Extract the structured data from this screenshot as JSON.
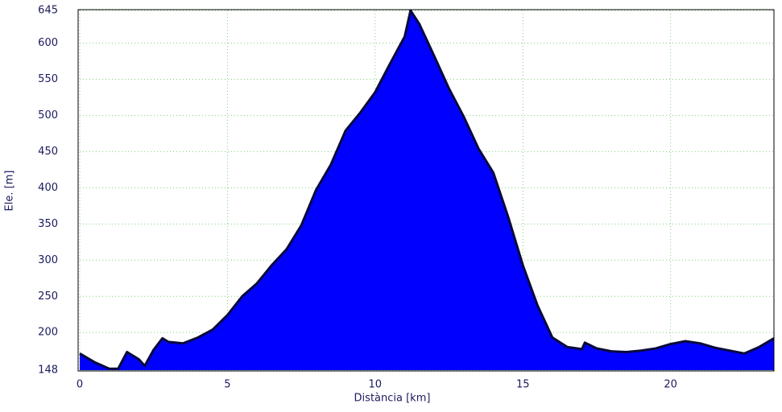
{
  "chart_data": {
    "type": "area",
    "x_label": "Distància [km]",
    "y_label": "Ele. [m]",
    "x": [
      0,
      0.5,
      1.0,
      1.3,
      1.6,
      2.0,
      2.2,
      2.5,
      2.8,
      3.0,
      3.5,
      4.0,
      4.5,
      5.0,
      5.5,
      6.0,
      6.5,
      7.0,
      7.5,
      8.0,
      8.5,
      9.0,
      9.5,
      10.0,
      10.5,
      11.0,
      11.2,
      11.5,
      12.0,
      12.5,
      13.0,
      13.5,
      14.0,
      14.5,
      15.0,
      15.5,
      16.0,
      16.5,
      17.0,
      17.1,
      17.5,
      18.0,
      18.5,
      19.0,
      19.5,
      20.0,
      20.5,
      21.0,
      21.5,
      22.0,
      22.5,
      23.0,
      23.5
    ],
    "values": [
      171,
      159,
      150,
      150,
      173,
      163,
      154,
      176,
      192,
      187,
      185,
      193,
      204,
      224,
      250,
      268,
      293,
      315,
      348,
      397,
      432,
      479,
      504,
      532,
      571,
      609,
      645,
      626,
      582,
      537,
      498,
      454,
      421,
      360,
      293,
      237,
      193,
      180,
      177,
      186,
      178,
      174,
      173,
      175,
      178,
      184,
      188,
      185,
      179,
      175,
      171,
      180,
      192
    ],
    "color": "#0000ff",
    "line_color": "#0a0a3c",
    "xlim": [
      0,
      23.5
    ],
    "ylim": [
      148,
      645
    ],
    "xticks": [
      0,
      5,
      10,
      15,
      20
    ],
    "yticks": [
      148,
      200,
      250,
      300,
      350,
      400,
      450,
      500,
      550,
      600,
      645
    ],
    "grid": true
  }
}
